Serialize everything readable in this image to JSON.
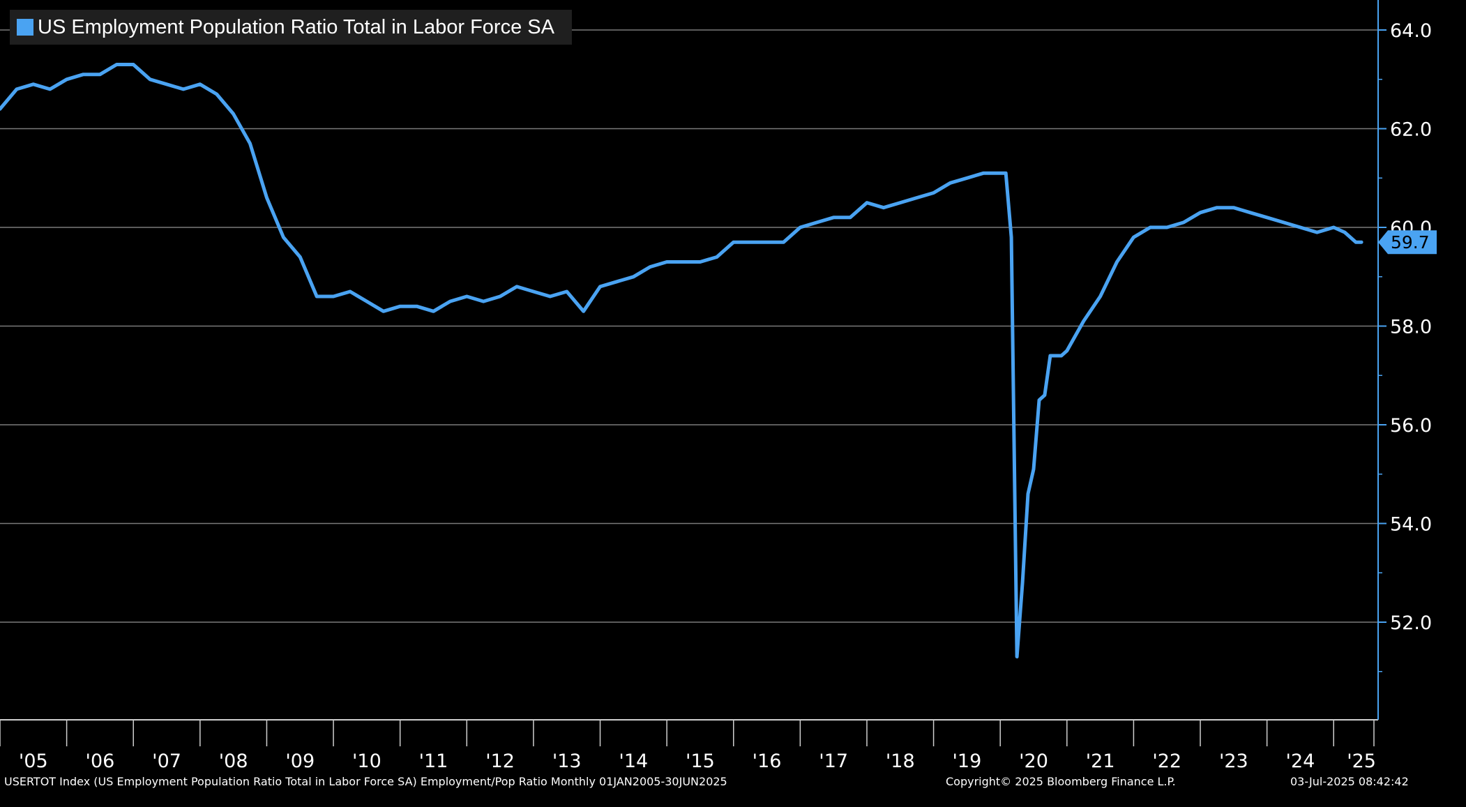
{
  "chart_data": {
    "type": "line",
    "title": "US Employment Population Ratio Total in Labor Force SA",
    "xlabel": "",
    "ylabel": "",
    "ylim": [
      49.5,
      64.5
    ],
    "xlim": [
      "2005-01",
      "2025-09"
    ],
    "y_ticks": [
      "64.0",
      "62.0",
      "60.0",
      "58.0",
      "56.0",
      "54.0",
      "52.0"
    ],
    "x_ticks": [
      "'05",
      "'06",
      "'07",
      "'08",
      "'09",
      "'10",
      "'11",
      "'12",
      "'13",
      "'14",
      "'15",
      "'16",
      "'17",
      "'18",
      "'19",
      "'20",
      "'21",
      "'22",
      "'23",
      "'24",
      "'25"
    ],
    "grid": true,
    "legend_position": "top-left",
    "last_value_label": "59.7",
    "colors": {
      "line": "#4aa3f2",
      "background": "#000000",
      "grid": "#7a7a7a",
      "legend_bg": "#1f1f1f"
    },
    "series": [
      {
        "name": "US Employment Population Ratio Total in Labor Force SA",
        "x": [
          "2005-01",
          "2005-04",
          "2005-07",
          "2005-10",
          "2006-01",
          "2006-04",
          "2006-07",
          "2006-10",
          "2007-01",
          "2007-04",
          "2007-07",
          "2007-10",
          "2008-01",
          "2008-04",
          "2008-07",
          "2008-10",
          "2009-01",
          "2009-04",
          "2009-07",
          "2009-10",
          "2010-01",
          "2010-04",
          "2010-07",
          "2010-10",
          "2011-01",
          "2011-04",
          "2011-07",
          "2011-10",
          "2012-01",
          "2012-04",
          "2012-07",
          "2012-10",
          "2013-01",
          "2013-04",
          "2013-07",
          "2013-10",
          "2014-01",
          "2014-04",
          "2014-07",
          "2014-10",
          "2015-01",
          "2015-04",
          "2015-07",
          "2015-10",
          "2016-01",
          "2016-04",
          "2016-07",
          "2016-10",
          "2017-01",
          "2017-04",
          "2017-07",
          "2017-10",
          "2018-01",
          "2018-04",
          "2018-07",
          "2018-10",
          "2019-01",
          "2019-04",
          "2019-07",
          "2019-10",
          "2020-01",
          "2020-02",
          "2020-03",
          "2020-04",
          "2020-05",
          "2020-06",
          "2020-07",
          "2020-08",
          "2020-09",
          "2020-10",
          "2020-11",
          "2020-12",
          "2021-01",
          "2021-04",
          "2021-07",
          "2021-10",
          "2022-01",
          "2022-04",
          "2022-07",
          "2022-10",
          "2023-01",
          "2023-04",
          "2023-07",
          "2023-10",
          "2024-01",
          "2024-04",
          "2024-07",
          "2024-10",
          "2025-01",
          "2025-03",
          "2025-05",
          "2025-06"
        ],
        "values": [
          62.4,
          62.8,
          62.9,
          62.8,
          63.0,
          63.1,
          63.1,
          63.3,
          63.3,
          63.0,
          62.9,
          62.8,
          62.9,
          62.7,
          62.3,
          61.7,
          60.6,
          59.8,
          59.4,
          58.6,
          58.6,
          58.7,
          58.5,
          58.3,
          58.4,
          58.4,
          58.3,
          58.5,
          58.6,
          58.5,
          58.6,
          58.8,
          58.7,
          58.6,
          58.7,
          58.3,
          58.8,
          58.9,
          59.0,
          59.2,
          59.3,
          59.3,
          59.3,
          59.4,
          59.7,
          59.7,
          59.7,
          59.7,
          60.0,
          60.1,
          60.2,
          60.2,
          60.5,
          60.4,
          60.5,
          60.6,
          60.7,
          60.9,
          61.0,
          61.1,
          61.1,
          61.1,
          59.8,
          51.3,
          52.8,
          54.6,
          55.1,
          56.5,
          56.6,
          57.4,
          57.4,
          57.4,
          57.5,
          58.1,
          58.6,
          59.3,
          59.8,
          60.0,
          60.0,
          60.1,
          60.3,
          60.4,
          60.4,
          60.3,
          60.2,
          60.1,
          60.0,
          59.9,
          60.0,
          59.9,
          59.7,
          59.7
        ]
      }
    ]
  },
  "footer": {
    "description": "USERTOT Index (US Employment Population Ratio Total in Labor Force SA) Employment/Pop Ratio  Monthly 01JAN2005-30JUN2025",
    "copyright": "Copyright© 2025 Bloomberg Finance L.P.",
    "timestamp": "03-Jul-2025 08:42:42"
  }
}
